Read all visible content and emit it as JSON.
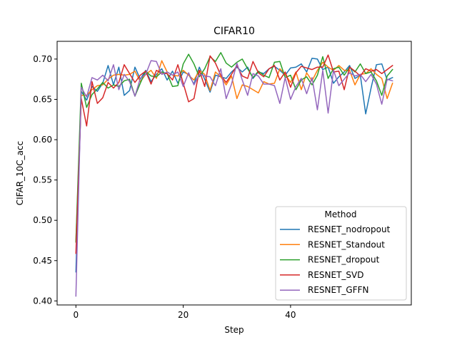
{
  "chart_data": {
    "type": "line",
    "title": "CIFAR10",
    "xlabel": "Step",
    "ylabel": "CIFAR_10C_acc",
    "xlim": [
      -3.5,
      62.5
    ],
    "ylim": [
      0.395,
      0.722
    ],
    "xticks": [
      0,
      20,
      40
    ],
    "yticks": [
      0.4,
      0.45,
      0.5,
      0.55,
      0.6,
      0.65,
      0.7
    ],
    "ytick_labels": [
      "0.40",
      "0.45",
      "0.50",
      "0.55",
      "0.60",
      "0.65",
      "0.70"
    ],
    "legend": {
      "title": "Method",
      "placement": "lower-right"
    },
    "x": [
      0,
      1,
      2,
      3,
      4,
      5,
      6,
      7,
      8,
      9,
      10,
      11,
      12,
      13,
      14,
      15,
      16,
      17,
      18,
      19,
      20,
      21,
      22,
      23,
      24,
      25,
      26,
      27,
      28,
      29,
      30,
      31,
      32,
      33,
      34,
      35,
      36,
      37,
      38,
      39,
      40,
      41,
      42,
      43,
      44,
      45,
      46,
      47,
      48,
      49,
      50,
      51,
      52,
      53,
      54,
      55,
      56,
      57,
      58,
      59
    ],
    "series": [
      {
        "name": "RESNET_nodropout",
        "color": "#1f77b4",
        "values": [
          0.436,
          0.66,
          0.649,
          0.666,
          0.66,
          0.67,
          0.692,
          0.668,
          0.69,
          0.655,
          0.661,
          0.69,
          0.675,
          0.686,
          0.672,
          0.681,
          0.688,
          0.674,
          0.685,
          0.67,
          0.684,
          0.681,
          0.669,
          0.69,
          0.675,
          0.659,
          0.68,
          0.678,
          0.676,
          0.684,
          0.69,
          0.684,
          0.69,
          0.676,
          0.684,
          0.682,
          0.688,
          0.691,
          0.686,
          0.68,
          0.689,
          0.69,
          0.694,
          0.684,
          0.701,
          0.7,
          0.687,
          0.69,
          0.67,
          0.678,
          0.684,
          0.692,
          0.676,
          0.68,
          0.632,
          0.664,
          0.693,
          0.694,
          0.674,
          0.677
        ]
      },
      {
        "name": "RESNET_Standout",
        "color": "#ff7f0e",
        "values": [
          0.474,
          0.655,
          0.655,
          0.662,
          0.667,
          0.668,
          0.675,
          0.68,
          0.681,
          0.68,
          0.681,
          0.685,
          0.672,
          0.681,
          0.686,
          0.676,
          0.698,
          0.684,
          0.68,
          0.679,
          0.686,
          0.68,
          0.674,
          0.686,
          0.681,
          0.661,
          0.684,
          0.678,
          0.668,
          0.679,
          0.651,
          0.668,
          0.666,
          0.662,
          0.658,
          0.672,
          0.669,
          0.67,
          0.688,
          0.681,
          0.671,
          0.684,
          0.662,
          0.683,
          0.673,
          0.686,
          0.696,
          0.69,
          0.686,
          0.692,
          0.686,
          0.686,
          0.668,
          0.681,
          0.682,
          0.688,
          0.681,
          0.676,
          0.651,
          0.67
        ]
      },
      {
        "name": "RESNET_dropout",
        "color": "#2ca02c",
        "values": [
          0.473,
          0.67,
          0.64,
          0.656,
          0.663,
          0.671,
          0.664,
          0.668,
          0.666,
          0.673,
          0.675,
          0.654,
          0.67,
          0.685,
          0.679,
          0.678,
          0.684,
          0.682,
          0.666,
          0.667,
          0.694,
          0.706,
          0.694,
          0.678,
          0.688,
          0.703,
          0.697,
          0.708,
          0.695,
          0.69,
          0.696,
          0.7,
          0.688,
          0.677,
          0.685,
          0.68,
          0.677,
          0.696,
          0.697,
          0.677,
          0.68,
          0.662,
          0.674,
          0.678,
          0.668,
          0.68,
          0.703,
          0.676,
          0.688,
          0.69,
          0.68,
          0.69,
          0.684,
          0.694,
          0.682,
          0.684,
          0.673,
          0.655,
          0.679,
          0.687
        ]
      },
      {
        "name": "RESNET_SVD",
        "color": "#d62728",
        "values": [
          0.459,
          0.651,
          0.617,
          0.672,
          0.645,
          0.652,
          0.671,
          0.664,
          0.671,
          0.693,
          0.682,
          0.671,
          0.68,
          0.685,
          0.669,
          0.686,
          0.682,
          0.682,
          0.674,
          0.693,
          0.67,
          0.647,
          0.651,
          0.686,
          0.666,
          0.704,
          0.695,
          0.68,
          0.671,
          0.681,
          0.692,
          0.679,
          0.676,
          0.697,
          0.683,
          0.678,
          0.688,
          0.692,
          0.674,
          0.684,
          0.665,
          0.683,
          0.691,
          0.689,
          0.687,
          0.69,
          0.69,
          0.705,
          0.684,
          0.685,
          0.662,
          0.69,
          0.685,
          0.679,
          0.688,
          0.685,
          0.687,
          0.682,
          0.687,
          0.692
        ]
      },
      {
        "name": "RESNET_GFFN",
        "color": "#9467bd",
        "values": [
          0.406,
          0.665,
          0.653,
          0.677,
          0.674,
          0.68,
          0.673,
          0.693,
          0.662,
          0.681,
          0.672,
          0.654,
          0.676,
          0.681,
          0.698,
          0.697,
          0.681,
          0.684,
          0.68,
          0.684,
          0.666,
          0.683,
          0.668,
          0.681,
          0.679,
          0.678,
          0.667,
          0.688,
          0.651,
          0.669,
          0.695,
          0.674,
          0.655,
          0.682,
          0.679,
          0.669,
          0.669,
          0.667,
          0.645,
          0.677,
          0.65,
          0.666,
          0.676,
          0.657,
          0.677,
          0.637,
          0.686,
          0.633,
          0.686,
          0.667,
          0.675,
          0.683,
          0.679,
          0.681,
          0.672,
          0.681,
          0.669,
          0.644,
          0.675,
          0.673
        ]
      }
    ]
  }
}
